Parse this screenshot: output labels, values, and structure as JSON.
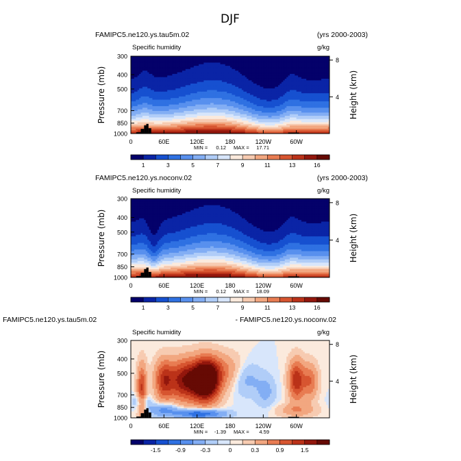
{
  "figure_title": "DJF",
  "colors": {
    "land": "#000000",
    "frame": "#000000",
    "text": "#000000"
  },
  "chart_data": [
    {
      "type": "heatmap",
      "case_label": "FAMIPC5.ne120.ys.tau5m.02",
      "period_label": "(yrs 2000-2003)",
      "subtitle": "Specific humidity",
      "units": "g/kg",
      "ylabel": "Pressure (mb)",
      "ylabel_right": "Height (km)",
      "x_ticks": [
        "0",
        "60E",
        "120E",
        "180",
        "120W",
        "60W"
      ],
      "x_tick_values": [
        0,
        60,
        120,
        180,
        240,
        300
      ],
      "xlim": [
        0,
        360
      ],
      "y_ticks": [
        "300",
        "400",
        "500",
        "700",
        "850",
        "1000"
      ],
      "y_tick_values": [
        300,
        400,
        500,
        700,
        850,
        1000
      ],
      "ylim": [
        1000,
        300
      ],
      "height_ticks": [
        "8",
        "4"
      ],
      "height_tick_values": [
        8,
        4
      ],
      "min_text": "MIN =",
      "min_value": "0.12",
      "max_text": "MAX =",
      "max_value": "17.71",
      "colorbar_labels": [
        "1",
        "3",
        "5",
        "7",
        "9",
        "11",
        "13",
        "16"
      ],
      "colorbar_levels": [
        1,
        2,
        3,
        4,
        5,
        6,
        7,
        8,
        9,
        10,
        11,
        12,
        13,
        14,
        16
      ],
      "colorbar_colors": [
        "#04016a",
        "#0a24a6",
        "#1650d0",
        "#2f71e2",
        "#5890ee",
        "#83aef4",
        "#b0cdf8",
        "#d8e6fb",
        "#fbeadd",
        "#f7cbb1",
        "#f2a780",
        "#e87c52",
        "#d75530",
        "#bb3219",
        "#93170d",
        "#660a04"
      ],
      "max_field": 17.71,
      "min_field": 0.12,
      "features": [
        {
          "name": "maritime-continent-moisture-max",
          "lon": 130,
          "p": 550
        },
        {
          "name": "eastern-pacific-dry-zone",
          "lon": 255,
          "p": 700
        },
        {
          "name": "andes-moist-plume",
          "lon": 290,
          "p": 700
        },
        {
          "name": "africa-moist-plume",
          "lon": 25,
          "p": 700
        }
      ],
      "topography": [
        {
          "lon_start": 10,
          "lon_end": 18,
          "p_top": 980
        },
        {
          "lon_start": 18,
          "lon_end": 24,
          "p_top": 930
        },
        {
          "lon_start": 24,
          "lon_end": 28,
          "p_top": 880
        },
        {
          "lon_start": 28,
          "lon_end": 32,
          "p_top": 860
        },
        {
          "lon_start": 32,
          "lon_end": 37,
          "p_top": 920
        },
        {
          "lon_start": 285,
          "lon_end": 305,
          "p_top": 985
        }
      ]
    },
    {
      "type": "heatmap",
      "case_label": "FAMIPC5.ne120.ys.noconv.02",
      "period_label": "(yrs 2000-2003)",
      "subtitle": "Specific humidity",
      "units": "g/kg",
      "ylabel": "Pressure (mb)",
      "ylabel_right": "Height (km)",
      "x_ticks": [
        "0",
        "60E",
        "120E",
        "180",
        "120W",
        "60W"
      ],
      "x_tick_values": [
        0,
        60,
        120,
        180,
        240,
        300
      ],
      "xlim": [
        0,
        360
      ],
      "y_ticks": [
        "300",
        "400",
        "500",
        "700",
        "850",
        "1000"
      ],
      "y_tick_values": [
        300,
        400,
        500,
        700,
        850,
        1000
      ],
      "ylim": [
        1000,
        300
      ],
      "height_ticks": [
        "8",
        "4"
      ],
      "height_tick_values": [
        8,
        4
      ],
      "min_text": "MIN =",
      "min_value": "0.12",
      "max_text": "MAX =",
      "max_value": "18.09",
      "colorbar_labels": [
        "1",
        "3",
        "5",
        "7",
        "9",
        "11",
        "13",
        "16"
      ],
      "colorbar_levels": [
        1,
        2,
        3,
        4,
        5,
        6,
        7,
        8,
        9,
        10,
        11,
        12,
        13,
        14,
        16
      ],
      "colorbar_colors": [
        "#04016a",
        "#0a24a6",
        "#1650d0",
        "#2f71e2",
        "#5890ee",
        "#83aef4",
        "#b0cdf8",
        "#d8e6fb",
        "#fbeadd",
        "#f7cbb1",
        "#f2a780",
        "#e87c52",
        "#d75530",
        "#bb3219",
        "#93170d",
        "#660a04"
      ],
      "max_field": 18.09,
      "min_field": 0.12,
      "features": [
        {
          "name": "maritime-continent-moisture-max",
          "lon": 130,
          "p": 550
        },
        {
          "name": "eastern-pacific-dry-zone",
          "lon": 255,
          "p": 700
        },
        {
          "name": "andes-moist-plume",
          "lon": 290,
          "p": 700
        },
        {
          "name": "africa-dry-notch",
          "lon": 42,
          "p": 750
        }
      ],
      "topography": [
        {
          "lon_start": 10,
          "lon_end": 18,
          "p_top": 980
        },
        {
          "lon_start": 18,
          "lon_end": 24,
          "p_top": 930
        },
        {
          "lon_start": 24,
          "lon_end": 28,
          "p_top": 880
        },
        {
          "lon_start": 28,
          "lon_end": 32,
          "p_top": 860
        },
        {
          "lon_start": 32,
          "lon_end": 37,
          "p_top": 920
        },
        {
          "lon_start": 285,
          "lon_end": 305,
          "p_top": 985
        }
      ]
    },
    {
      "type": "heatmap",
      "case_label": "FAMIPC5.ne120.ys.tau5m.02",
      "period_label": "- FAMIPC5.ne120.ys.noconv.02",
      "subtitle": "Specific humidity",
      "units": "g/kg",
      "ylabel": "Pressure (mb)",
      "ylabel_right": "Height (km)",
      "x_ticks": [
        "0",
        "60E",
        "120E",
        "180",
        "120W",
        "60W"
      ],
      "x_tick_values": [
        0,
        60,
        120,
        180,
        240,
        300
      ],
      "xlim": [
        0,
        360
      ],
      "y_ticks": [
        "300",
        "400",
        "500",
        "700",
        "850",
        "1000"
      ],
      "y_tick_values": [
        300,
        400,
        500,
        700,
        850,
        1000
      ],
      "ylim": [
        1000,
        300
      ],
      "height_ticks": [
        "8",
        "4"
      ],
      "height_tick_values": [
        8,
        4
      ],
      "min_text": "MIN =",
      "min_value": "-1.39",
      "max_text": "MAX =",
      "max_value": "4.59",
      "colorbar_labels": [
        "-1.5",
        "-0.9",
        "-0.3",
        "0",
        "0.3",
        "0.9",
        "1.5"
      ],
      "colorbar_levels": [
        -1.8,
        -1.5,
        -1.2,
        -0.9,
        -0.6,
        -0.3,
        -0.1,
        0,
        0.1,
        0.3,
        0.6,
        0.9,
        1.2,
        1.5,
        1.8
      ],
      "colorbar_colors": [
        "#04016a",
        "#0a24a6",
        "#1650d0",
        "#2f71e2",
        "#5890ee",
        "#83aef4",
        "#b0cdf8",
        "#d8e6fb",
        "#fbeadd",
        "#f7cbb1",
        "#f2a780",
        "#e87c52",
        "#d75530",
        "#bb3219",
        "#93170d",
        "#660a04"
      ],
      "max_field": 4.59,
      "min_field": -1.39,
      "features": [
        {
          "name": "west-pacific-moistening-max",
          "lon": 135,
          "p": 560,
          "value": 4.59
        },
        {
          "name": "indian-ocean-moistening",
          "lon": 75,
          "p": 520,
          "value": 1.5
        },
        {
          "name": "central-pacific-drying",
          "lon": 210,
          "p": 560,
          "value": -0.6
        },
        {
          "name": "lower-level-drying",
          "lon": 120,
          "p": 930,
          "value": -1.39
        },
        {
          "name": "south-america-moistening",
          "lon": 300,
          "p": 540,
          "value": 1.8
        }
      ],
      "topography": [
        {
          "lon_start": 10,
          "lon_end": 18,
          "p_top": 980
        },
        {
          "lon_start": 18,
          "lon_end": 24,
          "p_top": 930
        },
        {
          "lon_start": 24,
          "lon_end": 28,
          "p_top": 880
        },
        {
          "lon_start": 28,
          "lon_end": 32,
          "p_top": 860
        },
        {
          "lon_start": 32,
          "lon_end": 37,
          "p_top": 920
        },
        {
          "lon_start": 285,
          "lon_end": 305,
          "p_top": 985
        }
      ]
    }
  ]
}
